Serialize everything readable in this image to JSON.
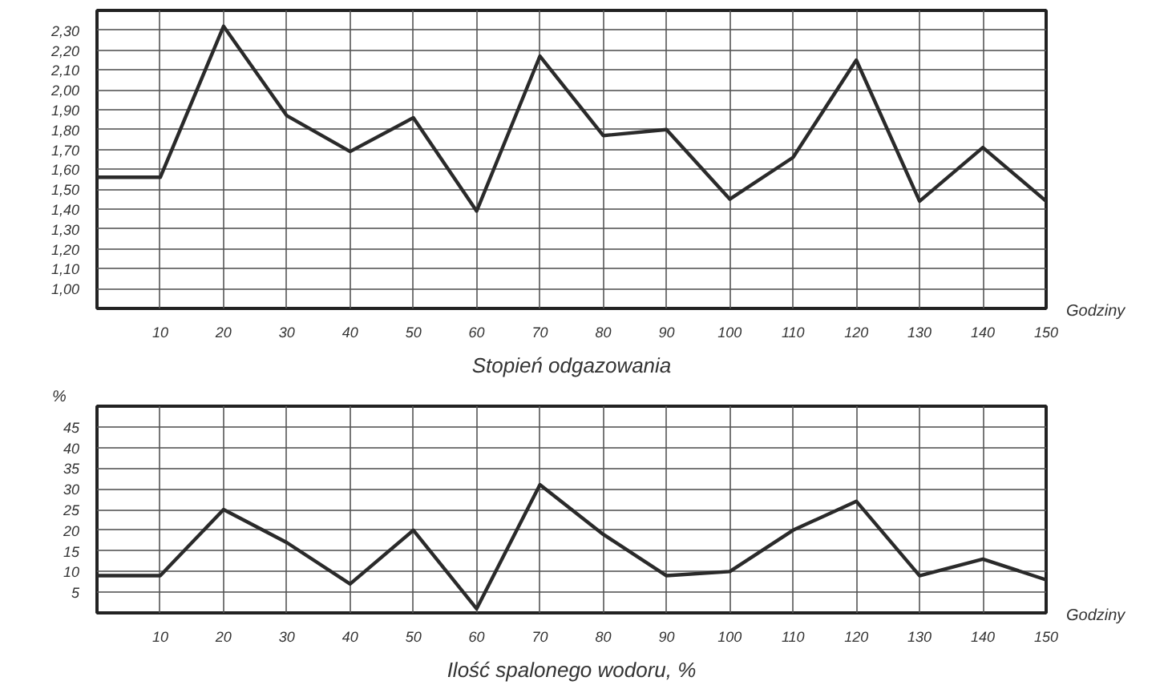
{
  "chart_data": [
    {
      "type": "line",
      "title": "Stopień odgazowania",
      "xlabel": "Godziny",
      "x": [
        0,
        10,
        20,
        30,
        40,
        50,
        60,
        70,
        80,
        90,
        100,
        110,
        120,
        130,
        140,
        150
      ],
      "series": [
        {
          "color": "#2a2a2a",
          "values": [
            1.56,
            1.56,
            2.32,
            1.87,
            1.69,
            1.86,
            1.39,
            2.17,
            1.77,
            1.8,
            1.45,
            1.66,
            2.15,
            1.44,
            1.71,
            1.44
          ]
        }
      ],
      "xlim": [
        0,
        150
      ],
      "xticks": [
        10,
        20,
        30,
        40,
        50,
        60,
        70,
        80,
        90,
        100,
        110,
        120,
        130,
        140,
        150
      ],
      "ylim": [
        0.9,
        2.4
      ],
      "yticks": [
        {
          "value": 1.0,
          "label": "1,00"
        },
        {
          "value": 1.1,
          "label": "1,10"
        },
        {
          "value": 1.2,
          "label": "1,20"
        },
        {
          "value": 1.3,
          "label": "1,30"
        },
        {
          "value": 1.4,
          "label": "1,40"
        },
        {
          "value": 1.5,
          "label": "1,50"
        },
        {
          "value": 1.6,
          "label": "1,60"
        },
        {
          "value": 1.7,
          "label": "1,70"
        },
        {
          "value": 1.8,
          "label": "1,80"
        },
        {
          "value": 1.9,
          "label": "1,90"
        },
        {
          "value": 2.0,
          "label": "2,00"
        },
        {
          "value": 2.1,
          "label": "2,10"
        },
        {
          "value": 2.2,
          "label": "2,20"
        },
        {
          "value": 2.3,
          "label": "2,30"
        }
      ],
      "grid": true,
      "marker": "none",
      "line_style": "solid"
    },
    {
      "type": "line",
      "title": "Ilość spalonego wodoru, %",
      "xlabel": "Godziny",
      "ylabel": "%",
      "x": [
        0,
        10,
        20,
        30,
        40,
        50,
        60,
        70,
        80,
        90,
        100,
        110,
        120,
        130,
        140,
        150
      ],
      "series": [
        {
          "color": "#2a2a2a",
          "values": [
            9,
            9,
            25,
            17,
            7,
            20,
            1,
            31,
            19,
            9,
            10,
            20,
            27,
            9,
            13,
            8
          ]
        }
      ],
      "xlim": [
        0,
        150
      ],
      "xticks": [
        10,
        20,
        30,
        40,
        50,
        60,
        70,
        80,
        90,
        100,
        110,
        120,
        130,
        140,
        150
      ],
      "ylim": [
        0,
        50
      ],
      "yticks": [
        5,
        10,
        15,
        20,
        25,
        30,
        35,
        40,
        45
      ],
      "grid": true,
      "marker": "none",
      "line_style": "solid"
    }
  ]
}
